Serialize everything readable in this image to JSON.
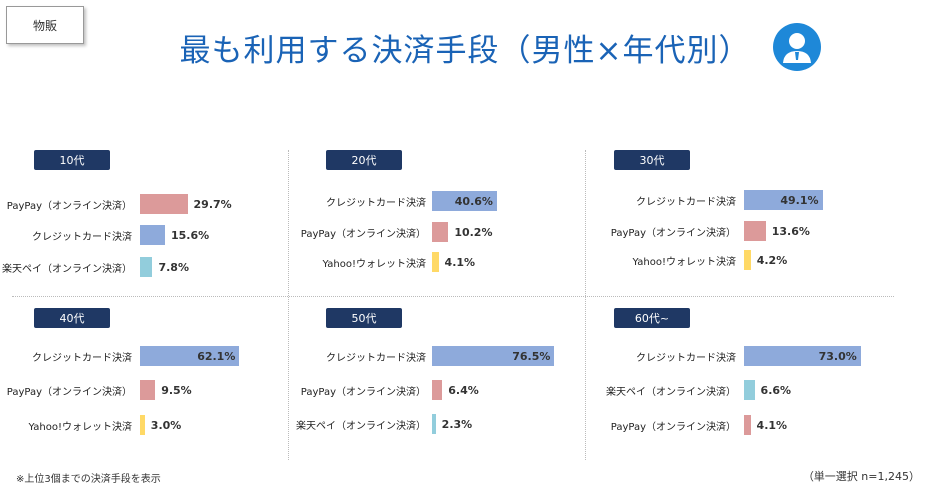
{
  "header": {
    "tag": "物販",
    "title": "最も利用する決済手段（男性×年代別）"
  },
  "footer": {
    "note": "※上位3個までの決済手段を表示",
    "sample": "（単一選択 n=1,245）"
  },
  "colors": {
    "title": "#1a63b6",
    "badge": "#1f3864",
    "credit": "#8eaadb",
    "paypay": "#dc9a9a",
    "rakuten": "#92cddc",
    "yahoo": "#ffd966"
  },
  "chart_data": [
    {
      "type": "bar",
      "orientation": "horizontal",
      "title": "10代",
      "xlim": [
        0,
        100
      ],
      "categories": [
        "PayPay（オンライン決済）",
        "クレジットカード決済",
        "楽天ペイ（オンライン決済）"
      ],
      "values": [
        29.7,
        15.6,
        7.8
      ],
      "labels": [
        "29.7%",
        "15.6%",
        "7.8%"
      ],
      "colors": [
        "#dc9a9a",
        "#8eaadb",
        "#92cddc"
      ]
    },
    {
      "type": "bar",
      "orientation": "horizontal",
      "title": "20代",
      "xlim": [
        0,
        100
      ],
      "categories": [
        "クレジットカード決済",
        "PayPay（オンライン決済）",
        "Yahoo!ウォレット決済"
      ],
      "values": [
        40.6,
        10.2,
        4.1
      ],
      "labels": [
        "40.6%",
        "10.2%",
        "4.1%"
      ],
      "colors": [
        "#8eaadb",
        "#dc9a9a",
        "#ffd966"
      ]
    },
    {
      "type": "bar",
      "orientation": "horizontal",
      "title": "30代",
      "xlim": [
        0,
        100
      ],
      "categories": [
        "クレジットカード決済",
        "PayPay（オンライン決済）",
        "Yahoo!ウォレット決済"
      ],
      "values": [
        49.1,
        13.6,
        4.2
      ],
      "labels": [
        "49.1%",
        "13.6%",
        "4.2%"
      ],
      "colors": [
        "#8eaadb",
        "#dc9a9a",
        "#ffd966"
      ]
    },
    {
      "type": "bar",
      "orientation": "horizontal",
      "title": "40代",
      "xlim": [
        0,
        100
      ],
      "categories": [
        "クレジットカード決済",
        "PayPay（オンライン決済）",
        "Yahoo!ウォレット決済"
      ],
      "values": [
        62.1,
        9.5,
        3.0
      ],
      "labels": [
        "62.1%",
        "9.5%",
        "3.0%"
      ],
      "colors": [
        "#8eaadb",
        "#dc9a9a",
        "#ffd966"
      ]
    },
    {
      "type": "bar",
      "orientation": "horizontal",
      "title": "50代",
      "xlim": [
        0,
        100
      ],
      "categories": [
        "クレジットカード決済",
        "PayPay（オンライン決済）",
        "楽天ペイ（オンライン決済）"
      ],
      "values": [
        76.5,
        6.4,
        2.3
      ],
      "labels": [
        "76.5%",
        "6.4%",
        "2.3%"
      ],
      "colors": [
        "#8eaadb",
        "#dc9a9a",
        "#92cddc"
      ]
    },
    {
      "type": "bar",
      "orientation": "horizontal",
      "title": "60代~",
      "xlim": [
        0,
        100
      ],
      "categories": [
        "クレジットカード決済",
        "楽天ペイ（オンライン決済）",
        "PayPay（オンライン決済）"
      ],
      "values": [
        73.0,
        6.6,
        4.1
      ],
      "labels": [
        "73.0%",
        "6.6%",
        "4.1%"
      ],
      "colors": [
        "#8eaadb",
        "#92cddc",
        "#dc9a9a"
      ]
    }
  ]
}
